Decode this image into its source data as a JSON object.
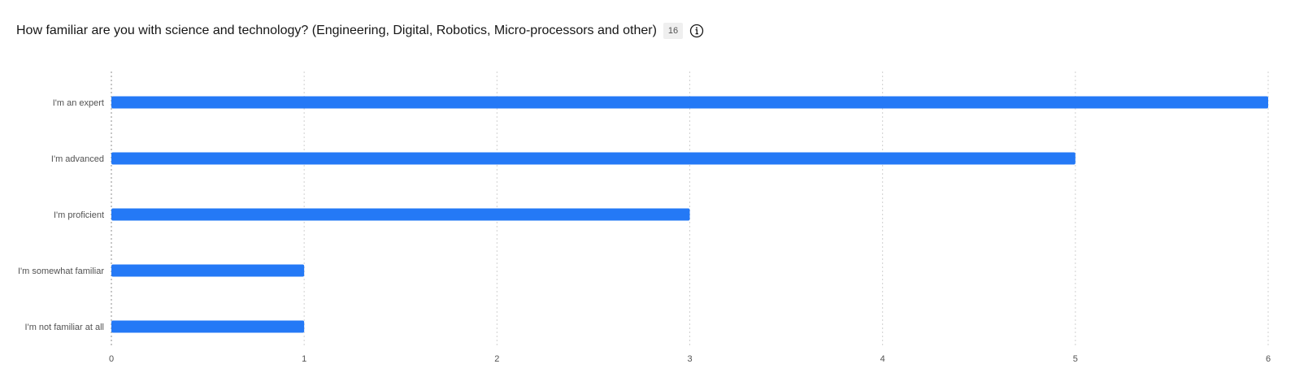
{
  "header": {
    "title": "How familiar are you with science and technology? (Engineering, Digital, Robotics, Micro-processors and other)",
    "count_badge": "16",
    "info_icon": "info-icon"
  },
  "colors": {
    "bar": "#2479f6",
    "grid": "#d0d0d0",
    "axis": "#8d8d8d"
  },
  "chart_data": {
    "type": "bar",
    "orientation": "horizontal",
    "categories": [
      "I'm an expert",
      "I'm advanced",
      "I'm proficient",
      "I'm somewhat familiar",
      "I'm not familiar at all"
    ],
    "values": [
      6,
      5,
      3,
      1,
      1
    ],
    "xlim": [
      0,
      6
    ],
    "xticks": [
      "0",
      "1",
      "2",
      "3",
      "4",
      "5",
      "6"
    ],
    "grid": true
  }
}
